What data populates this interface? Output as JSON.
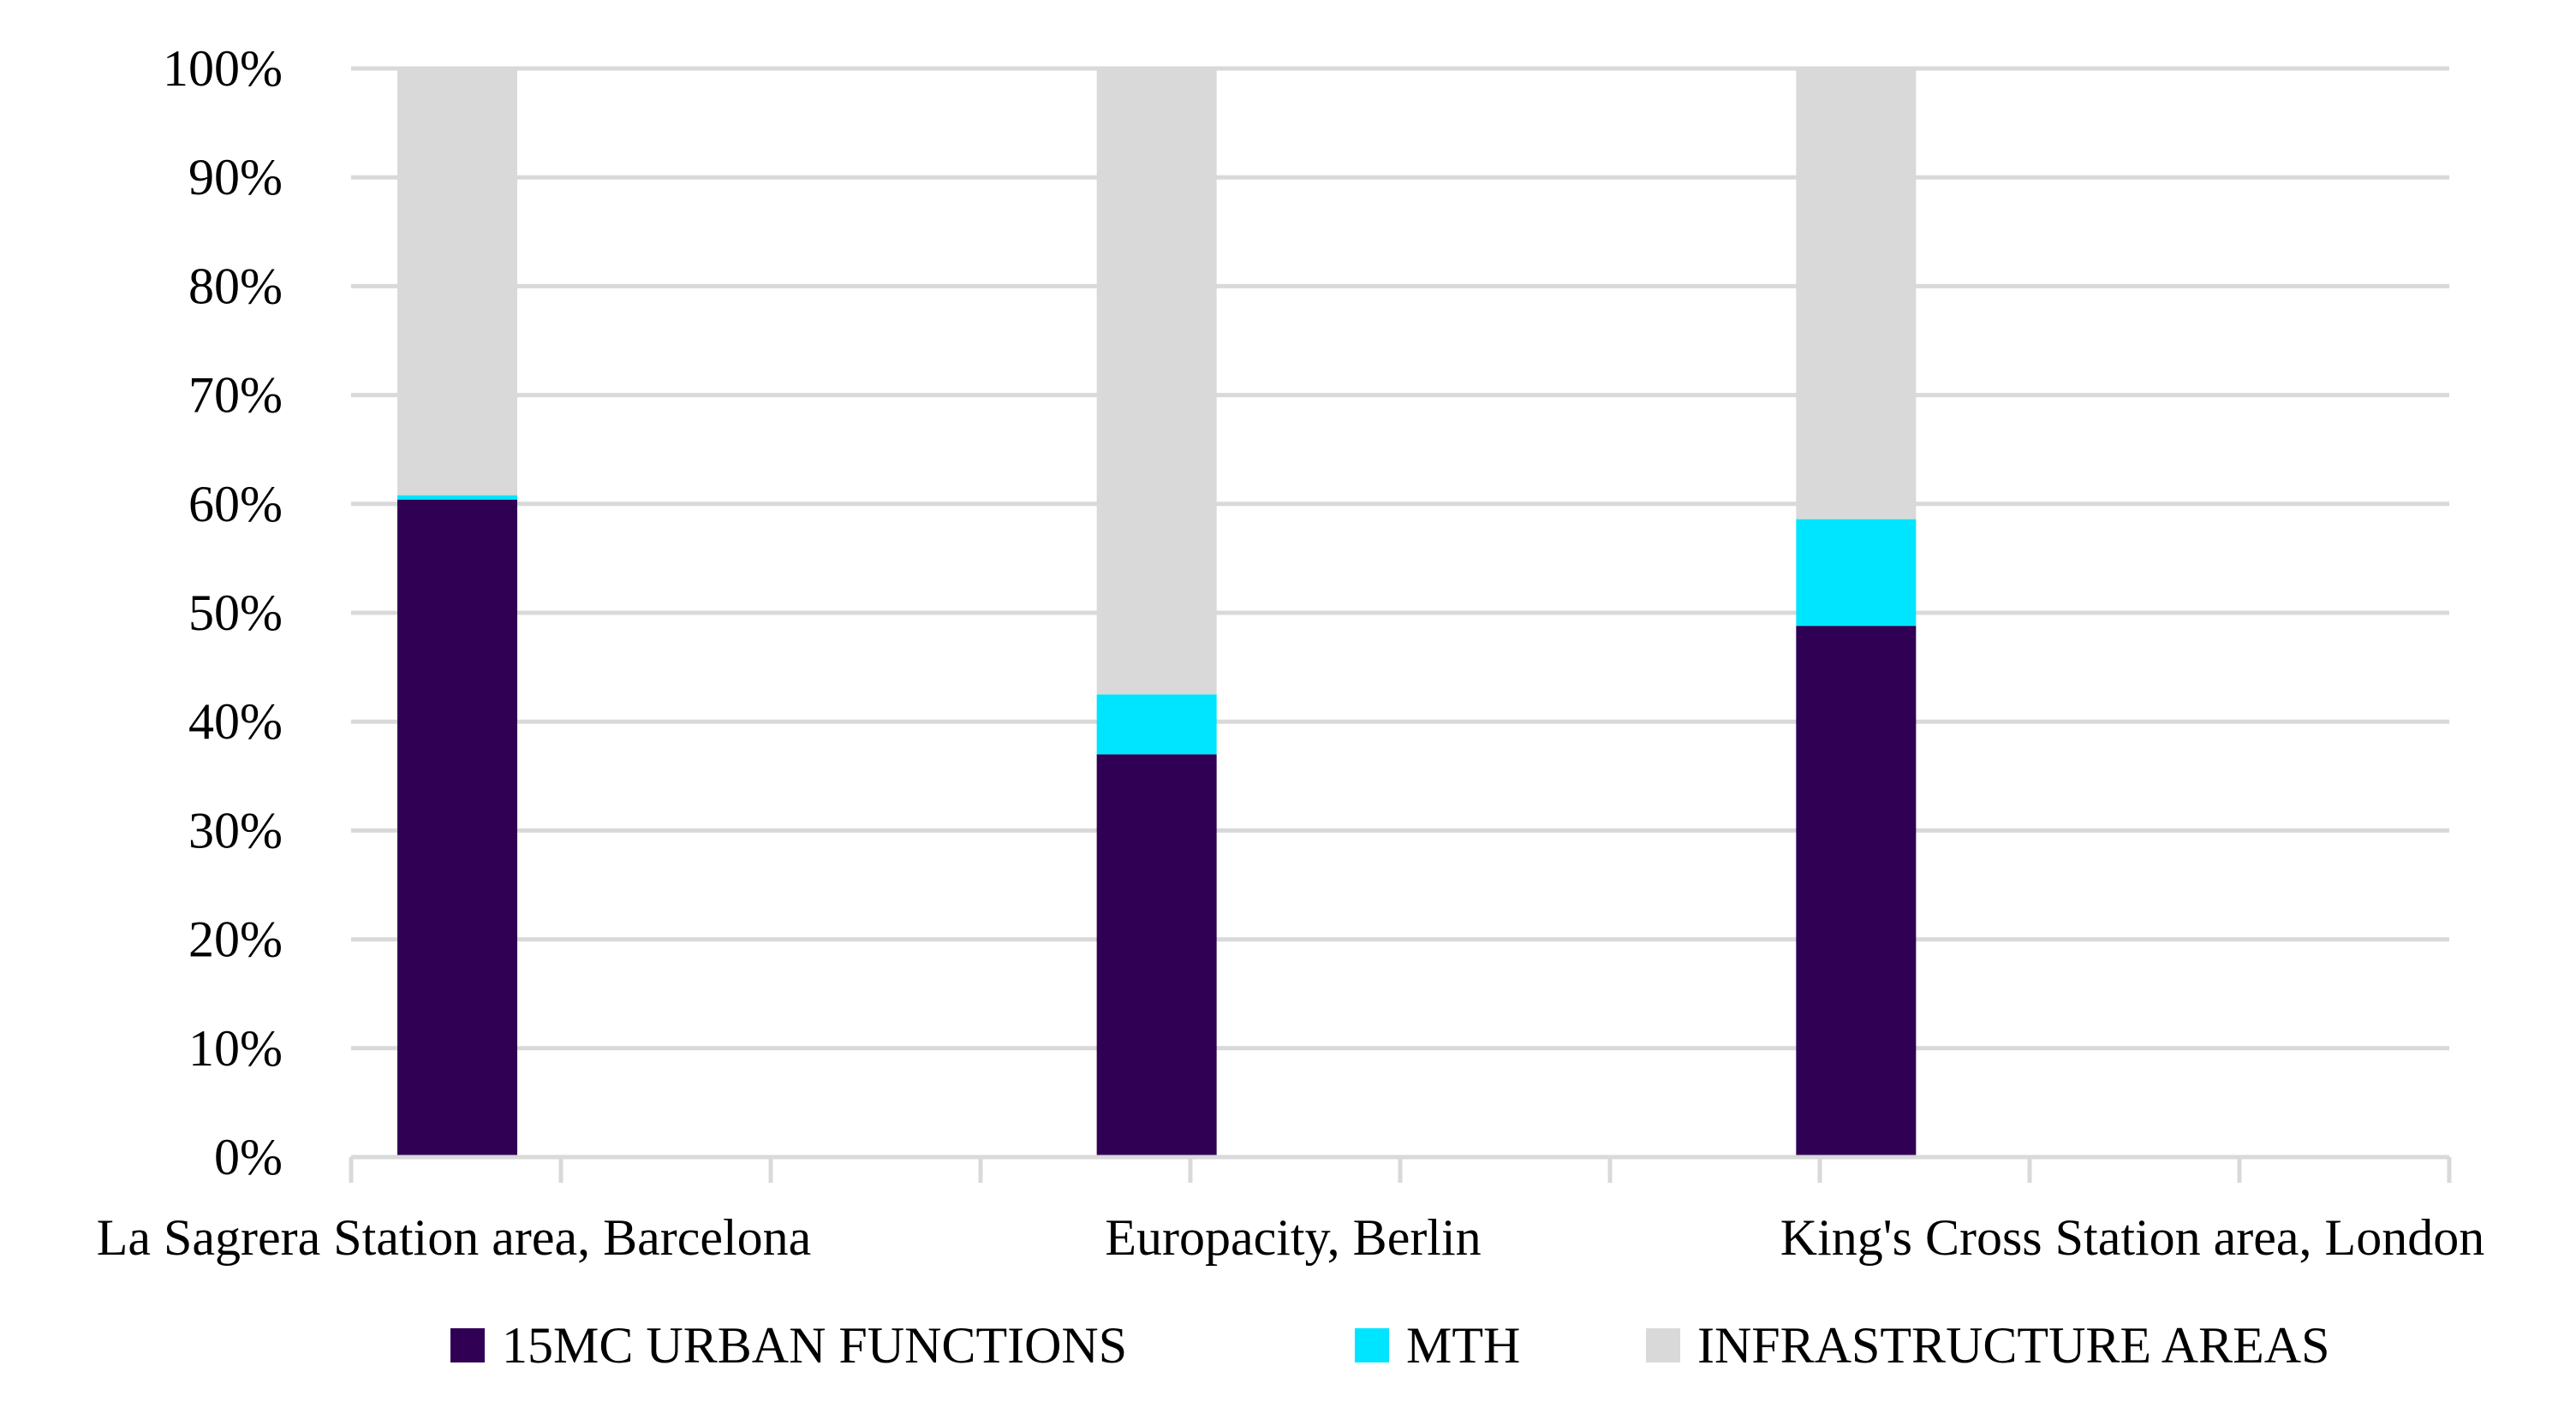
{
  "chart_data": {
    "type": "bar",
    "stacked": true,
    "percent_stacked": true,
    "categories": [
      "La Sagrera Station area, Barcelona",
      "Europacity, Berlin",
      "King's Cross Station area, London"
    ],
    "series": [
      {
        "name": "15MC URBAN FUNCTIONS",
        "color": "#300055",
        "values": [
          60.4,
          37.0,
          48.8
        ]
      },
      {
        "name": "MTH",
        "color": "#00e5ff",
        "values": [
          0.4,
          5.5,
          9.8
        ]
      },
      {
        "name": "INFRASTRUCTURE AREAS",
        "color": "#d9d9d9",
        "values": [
          39.2,
          57.5,
          41.4
        ]
      }
    ],
    "y_ticks": [
      "0%",
      "10%",
      "20%",
      "30%",
      "40%",
      "50%",
      "60%",
      "70%",
      "80%",
      "90%",
      "100%"
    ],
    "ylim": [
      0,
      100
    ],
    "grid": true,
    "legend_position": "bottom"
  }
}
